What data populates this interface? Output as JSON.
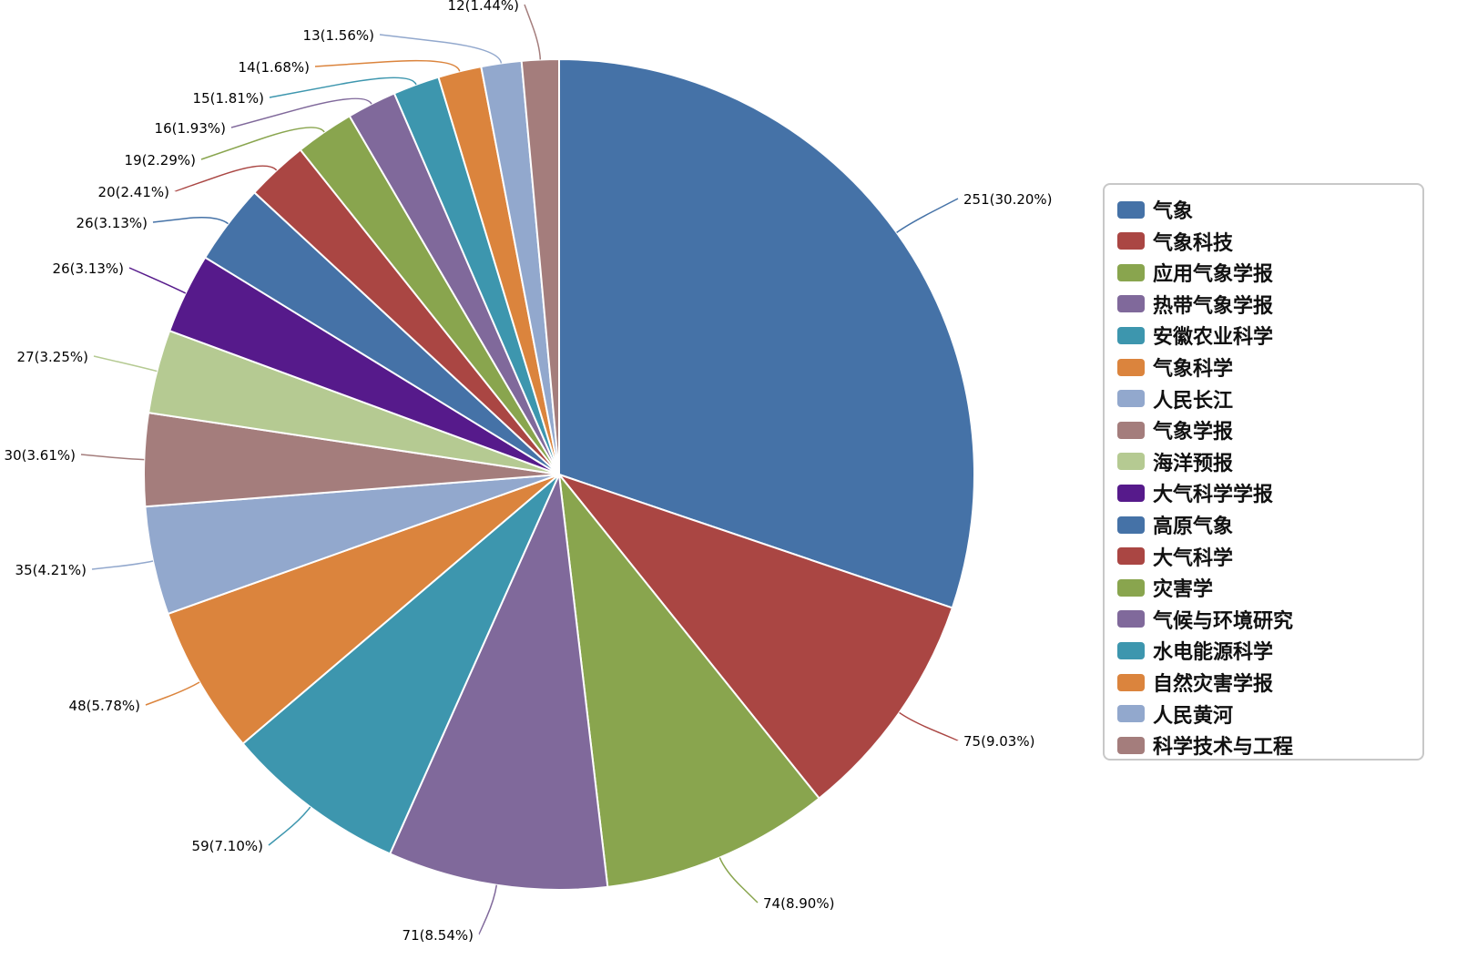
{
  "chart_data": {
    "type": "pie",
    "title": "",
    "start": "top",
    "direction": "clockwise",
    "legend_placement": "right",
    "categories": [
      "气象",
      "气象科技",
      "应用气象学报",
      "热带气象学报",
      "安徽农业科学",
      "气象科学",
      "人民长江",
      "气象学报",
      "海洋预报",
      "大气科学学报",
      "高原气象",
      "大气科学",
      "灾害学",
      "气候与环境研究",
      "水电能源科学",
      "自然灾害学报",
      "人民黄河",
      "科学技术与工程"
    ],
    "values": [
      251,
      75,
      74,
      71,
      59,
      48,
      35,
      30,
      27,
      26,
      26,
      20,
      19,
      16,
      15,
      14,
      13,
      12
    ],
    "labels": [
      "251(30.20%)",
      "75(9.03%)",
      "74(8.90%)",
      "71(8.54%)",
      "59(7.10%)",
      "48(5.78%)",
      "35(4.21%)",
      "30(3.61%)",
      "27(3.25%)",
      "26(3.13%)",
      "26(3.13%)",
      "20(2.41%)",
      "19(2.29%)",
      "16(1.93%)",
      "15(1.81%)",
      "14(1.68%)",
      "13(1.56%)",
      "12(1.44%)"
    ],
    "colors": [
      "#4572a7",
      "#aa4643",
      "#89a54e",
      "#80699b",
      "#3d96ae",
      "#db843d",
      "#92a8cd",
      "#a47d7c",
      "#b5ca92",
      "#561a8b",
      "#4572a7",
      "#aa4643",
      "#89a54e",
      "#80699b",
      "#3d96ae",
      "#db843d",
      "#92a8cd",
      "#a47d7c"
    ]
  }
}
